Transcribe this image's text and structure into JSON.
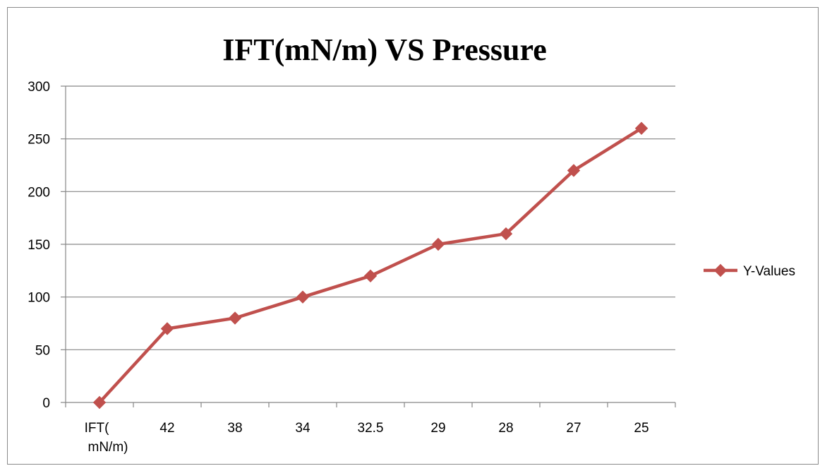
{
  "chart_data": {
    "type": "line",
    "title": "IFT(mN/m) VS Pressure",
    "categories": [
      "IFT(\nmN/m)",
      "42",
      "38",
      "34",
      "32.5",
      "29",
      "28",
      "27",
      "25"
    ],
    "series": [
      {
        "name": "Y-Values",
        "values": [
          0,
          70,
          80,
          100,
          120,
          150,
          160,
          220,
          260
        ],
        "color": "#c0504d",
        "marker": "diamond"
      }
    ],
    "xlabel": "",
    "ylabel": "",
    "ylim": [
      0,
      300
    ],
    "yticks": [
      0,
      50,
      100,
      150,
      200,
      250,
      300
    ],
    "grid": "horizontal",
    "legend_position": "right"
  }
}
